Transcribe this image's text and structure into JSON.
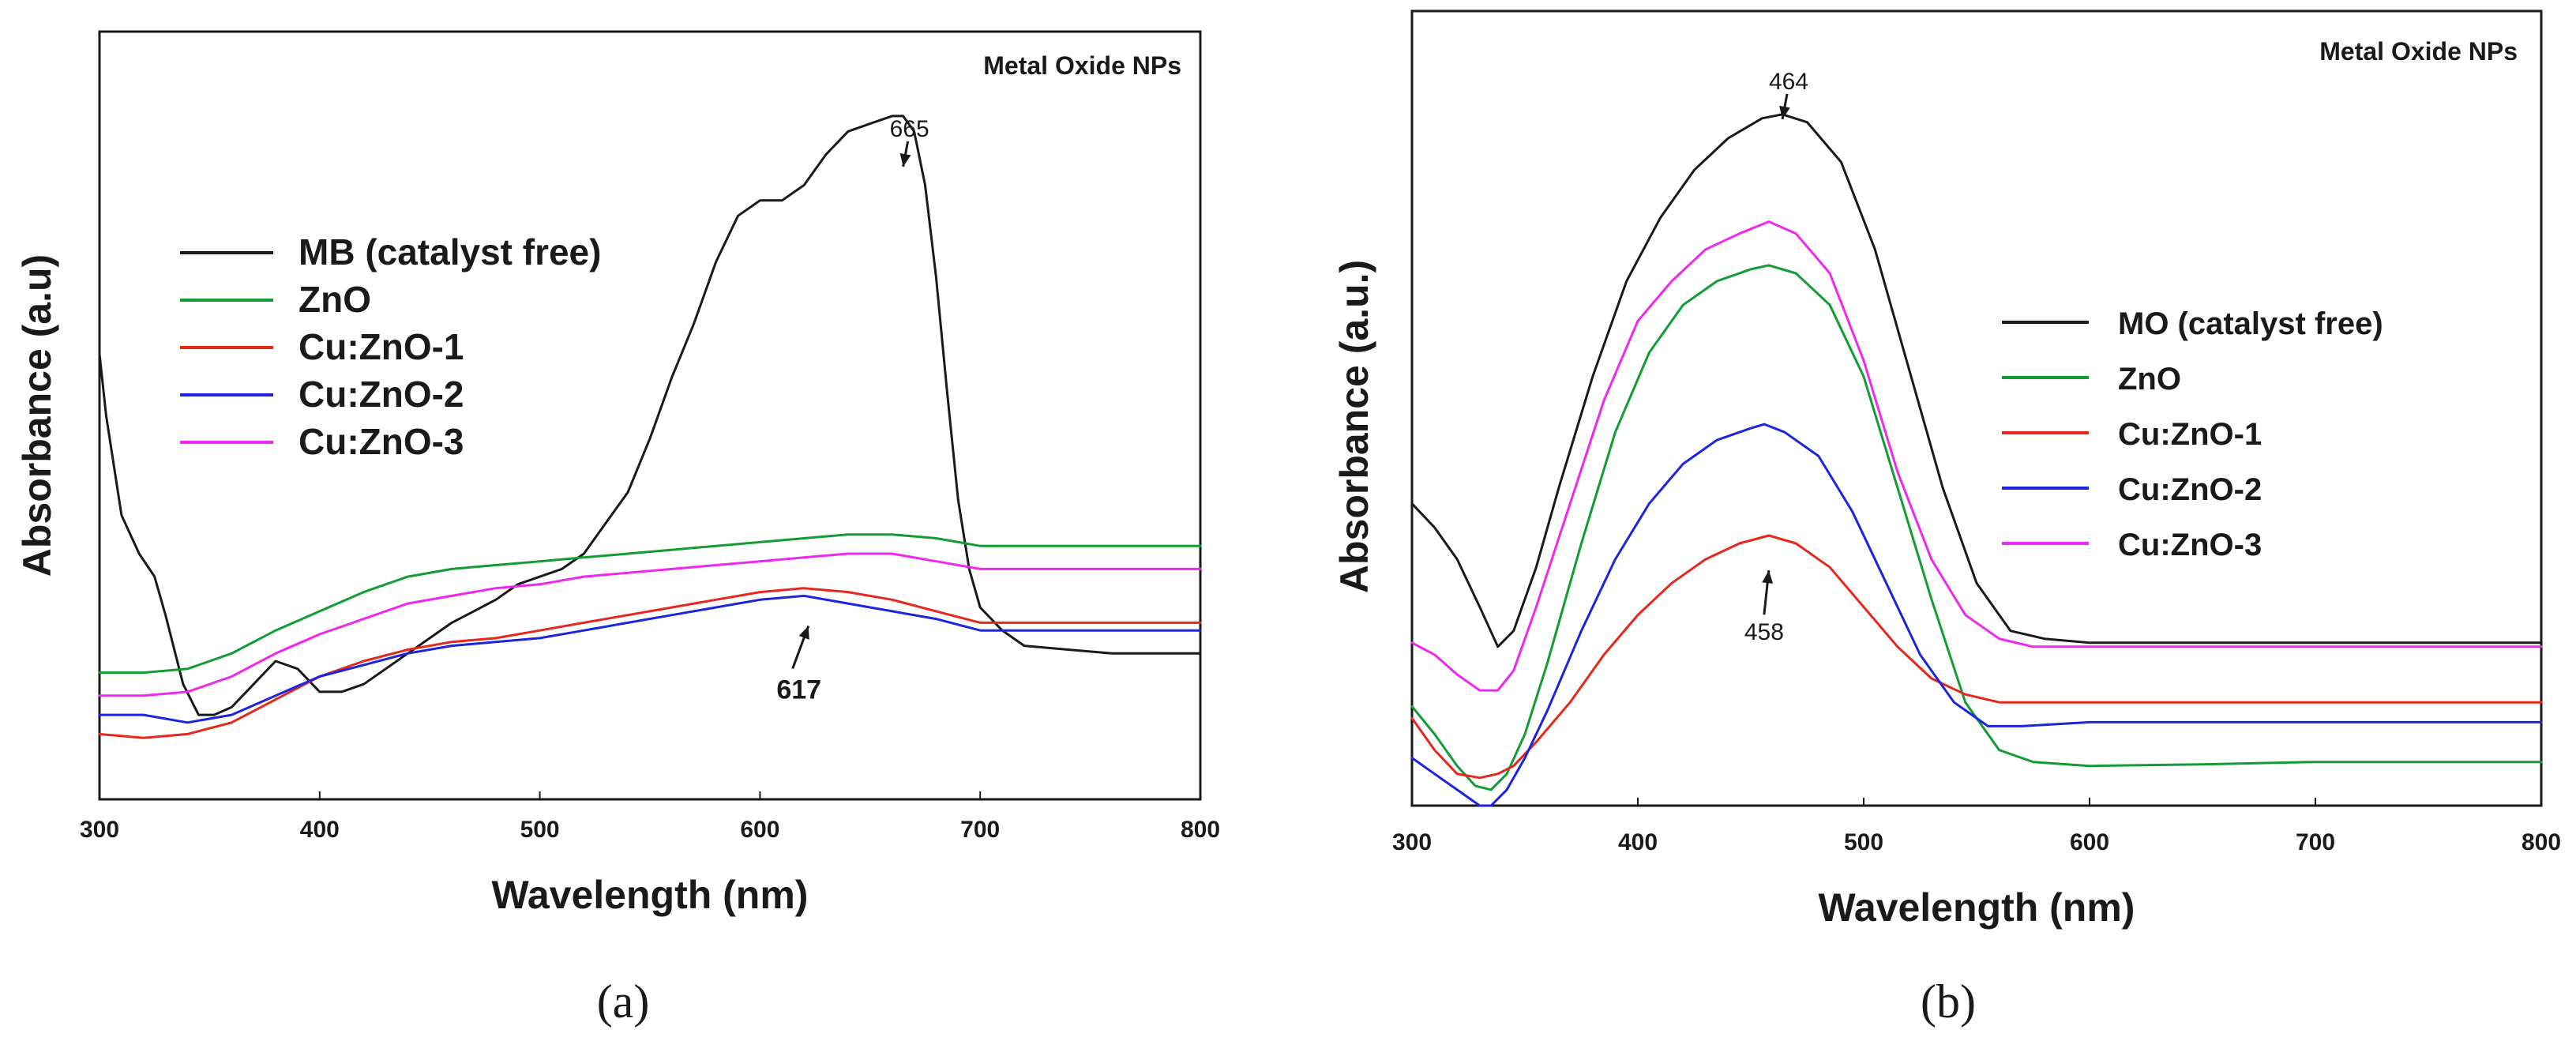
{
  "chart_data": [
    {
      "type": "line",
      "panel_label": "(a)",
      "note": "Metal Oxide NPs",
      "xlabel": "Wavelength (nm)",
      "ylabel": "Absorbance (a.u)",
      "xlim": [
        300,
        800
      ],
      "ylim": [
        0,
        1
      ],
      "xticks": [
        "300",
        "400",
        "500",
        "600",
        "700",
        "800"
      ],
      "legend_position": "top-left",
      "annotations": [
        {
          "text": "665",
          "x": 665,
          "y": 0.82,
          "style": "plain"
        },
        {
          "text": "617",
          "x": 622,
          "y": 0.23,
          "style": "bold"
        }
      ],
      "series": [
        {
          "name": "MB (catalyst free)",
          "color": "#1a1a1a",
          "x": [
            300,
            303,
            310,
            318,
            325,
            330,
            338,
            345,
            352,
            360,
            370,
            380,
            390,
            400,
            410,
            420,
            430,
            440,
            450,
            460,
            470,
            480,
            490,
            500,
            510,
            520,
            530,
            540,
            550,
            560,
            570,
            580,
            590,
            600,
            605,
            610,
            620,
            630,
            640,
            650,
            660,
            665,
            670,
            675,
            680,
            685,
            690,
            695,
            700,
            710,
            720,
            740,
            760,
            780,
            800
          ],
          "y": [
            0.58,
            0.5,
            0.37,
            0.32,
            0.29,
            0.24,
            0.15,
            0.11,
            0.11,
            0.12,
            0.15,
            0.18,
            0.17,
            0.14,
            0.14,
            0.15,
            0.17,
            0.19,
            0.21,
            0.23,
            0.245,
            0.26,
            0.28,
            0.29,
            0.3,
            0.32,
            0.36,
            0.4,
            0.47,
            0.55,
            0.62,
            0.7,
            0.76,
            0.78,
            0.78,
            0.78,
            0.8,
            0.84,
            0.87,
            0.88,
            0.89,
            0.89,
            0.87,
            0.8,
            0.68,
            0.53,
            0.39,
            0.3,
            0.25,
            0.22,
            0.2,
            0.195,
            0.19,
            0.19,
            0.19
          ]
        },
        {
          "name": "ZnO",
          "color": "#119d33",
          "x": [
            300,
            320,
            340,
            360,
            380,
            400,
            420,
            440,
            460,
            480,
            500,
            520,
            540,
            560,
            580,
            600,
            620,
            640,
            660,
            680,
            700,
            720,
            740,
            760,
            780,
            800
          ],
          "y": [
            0.165,
            0.165,
            0.17,
            0.19,
            0.22,
            0.245,
            0.27,
            0.29,
            0.3,
            0.305,
            0.31,
            0.315,
            0.32,
            0.325,
            0.33,
            0.335,
            0.34,
            0.345,
            0.345,
            0.34,
            0.33,
            0.33,
            0.33,
            0.33,
            0.33,
            0.33
          ]
        },
        {
          "name": "Cu:ZnO-1",
          "color": "#e8271c",
          "x": [
            300,
            320,
            340,
            360,
            380,
            400,
            420,
            440,
            460,
            480,
            500,
            520,
            540,
            560,
            580,
            600,
            620,
            640,
            660,
            680,
            700,
            720,
            740,
            760,
            780,
            800
          ],
          "y": [
            0.085,
            0.08,
            0.085,
            0.1,
            0.13,
            0.16,
            0.18,
            0.195,
            0.205,
            0.21,
            0.22,
            0.23,
            0.24,
            0.25,
            0.26,
            0.27,
            0.275,
            0.27,
            0.26,
            0.245,
            0.23,
            0.23,
            0.23,
            0.23,
            0.23,
            0.23
          ]
        },
        {
          "name": "Cu:ZnO-2",
          "color": "#1d24e0",
          "x": [
            300,
            320,
            340,
            360,
            380,
            400,
            420,
            440,
            460,
            480,
            500,
            520,
            540,
            560,
            580,
            600,
            620,
            640,
            660,
            680,
            700,
            720,
            740,
            760,
            780,
            800
          ],
          "y": [
            0.11,
            0.11,
            0.1,
            0.11,
            0.135,
            0.16,
            0.175,
            0.19,
            0.2,
            0.205,
            0.21,
            0.22,
            0.23,
            0.24,
            0.25,
            0.26,
            0.265,
            0.255,
            0.245,
            0.235,
            0.22,
            0.22,
            0.22,
            0.22,
            0.22,
            0.22
          ]
        },
        {
          "name": "Cu:ZnO-3",
          "color": "#f028ee",
          "x": [
            300,
            320,
            340,
            360,
            380,
            400,
            420,
            440,
            460,
            480,
            500,
            520,
            540,
            560,
            580,
            600,
            620,
            640,
            660,
            680,
            700,
            720,
            740,
            760,
            780,
            800
          ],
          "y": [
            0.135,
            0.135,
            0.14,
            0.16,
            0.19,
            0.215,
            0.235,
            0.255,
            0.265,
            0.275,
            0.28,
            0.29,
            0.295,
            0.3,
            0.305,
            0.31,
            0.315,
            0.32,
            0.32,
            0.31,
            0.3,
            0.3,
            0.3,
            0.3,
            0.3,
            0.3
          ]
        }
      ]
    },
    {
      "type": "line",
      "panel_label": "(b)",
      "note": "Metal Oxide NPs",
      "xlabel": "Wavelength (nm)",
      "ylabel": "Absorbance (a.u.)",
      "xlim": [
        300,
        800
      ],
      "ylim": [
        0,
        1
      ],
      "xticks": [
        "300",
        "400",
        "500",
        "600",
        "700",
        "800"
      ],
      "legend_position": "center-right",
      "annotations": [
        {
          "text": "464",
          "x": 464,
          "y": 0.86,
          "style": "plain"
        },
        {
          "text": "458",
          "x": 458,
          "y": 0.3,
          "style": "plain"
        }
      ],
      "series": [
        {
          "name": "MO (catalyst free)",
          "color": "#1a1a1a",
          "x": [
            300,
            310,
            320,
            330,
            338,
            345,
            355,
            365,
            380,
            395,
            410,
            425,
            440,
            455,
            464,
            475,
            490,
            505,
            520,
            535,
            550,
            565,
            580,
            600,
            650,
            700,
            750,
            800
          ],
          "y": [
            0.38,
            0.35,
            0.31,
            0.25,
            0.2,
            0.22,
            0.3,
            0.4,
            0.54,
            0.66,
            0.74,
            0.8,
            0.84,
            0.865,
            0.87,
            0.86,
            0.81,
            0.7,
            0.55,
            0.4,
            0.28,
            0.22,
            0.21,
            0.205,
            0.205,
            0.205,
            0.205,
            0.205
          ]
        },
        {
          "name": "ZnO",
          "color": "#119d33",
          "x": [
            300,
            310,
            320,
            328,
            335,
            342,
            350,
            360,
            375,
            390,
            405,
            420,
            435,
            450,
            458,
            470,
            485,
            500,
            515,
            530,
            545,
            560,
            575,
            600,
            650,
            700,
            750,
            800
          ],
          "y": [
            0.125,
            0.09,
            0.05,
            0.025,
            0.02,
            0.04,
            0.09,
            0.18,
            0.33,
            0.47,
            0.57,
            0.63,
            0.66,
            0.675,
            0.68,
            0.67,
            0.63,
            0.54,
            0.4,
            0.26,
            0.13,
            0.07,
            0.055,
            0.05,
            0.052,
            0.055,
            0.055,
            0.055
          ]
        },
        {
          "name": "Cu:ZnO-1",
          "color": "#e8271c",
          "x": [
            300,
            310,
            320,
            330,
            338,
            345,
            355,
            370,
            385,
            400,
            415,
            430,
            445,
            458,
            470,
            485,
            500,
            515,
            530,
            545,
            560,
            580,
            600,
            650,
            700,
            750,
            800
          ],
          "y": [
            0.11,
            0.07,
            0.04,
            0.035,
            0.04,
            0.05,
            0.08,
            0.13,
            0.19,
            0.24,
            0.28,
            0.31,
            0.33,
            0.34,
            0.33,
            0.3,
            0.25,
            0.2,
            0.16,
            0.14,
            0.13,
            0.13,
            0.13,
            0.13,
            0.13,
            0.13,
            0.13
          ]
        },
        {
          "name": "Cu:ZnO-2",
          "color": "#1d24e0",
          "x": [
            300,
            310,
            320,
            330,
            335,
            342,
            350,
            360,
            375,
            390,
            405,
            420,
            435,
            450,
            456,
            465,
            480,
            495,
            510,
            525,
            540,
            555,
            570,
            600,
            650,
            700,
            750,
            800
          ],
          "y": [
            0.06,
            0.04,
            0.02,
            0.0,
            0.0,
            0.02,
            0.06,
            0.12,
            0.22,
            0.31,
            0.38,
            0.43,
            0.46,
            0.475,
            0.48,
            0.47,
            0.44,
            0.37,
            0.28,
            0.19,
            0.13,
            0.1,
            0.1,
            0.105,
            0.105,
            0.105,
            0.105,
            0.105
          ]
        },
        {
          "name": "Cu:ZnO-3",
          "color": "#f028ee",
          "x": [
            300,
            310,
            320,
            330,
            338,
            345,
            355,
            370,
            385,
            400,
            415,
            430,
            445,
            458,
            470,
            485,
            500,
            515,
            530,
            545,
            560,
            575,
            600,
            650,
            700,
            750,
            800
          ],
          "y": [
            0.205,
            0.19,
            0.165,
            0.145,
            0.145,
            0.17,
            0.25,
            0.38,
            0.51,
            0.61,
            0.66,
            0.7,
            0.72,
            0.735,
            0.72,
            0.67,
            0.56,
            0.42,
            0.31,
            0.24,
            0.21,
            0.2,
            0.2,
            0.2,
            0.2,
            0.2,
            0.2
          ]
        }
      ]
    }
  ]
}
